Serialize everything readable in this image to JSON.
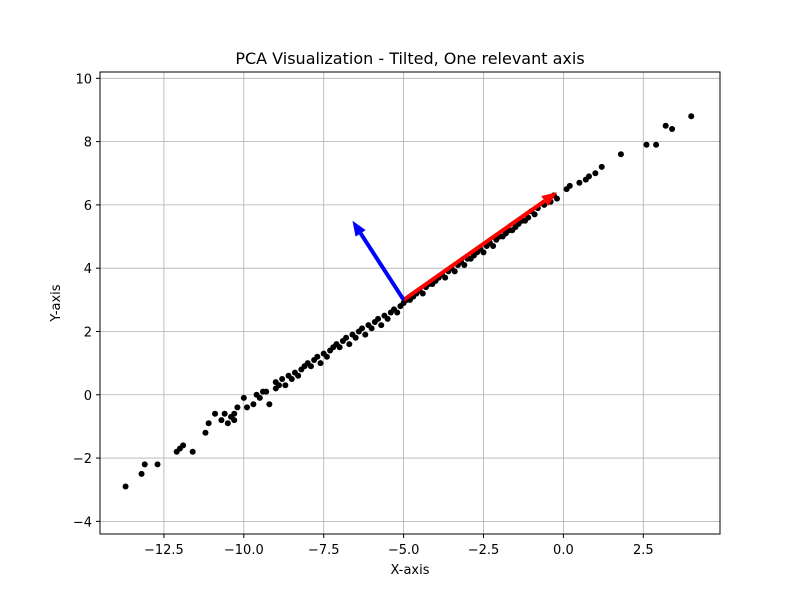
{
  "chart_data": {
    "type": "scatter",
    "title": "PCA Visualization - Tilted, One relevant axis",
    "xlabel": "X-axis",
    "ylabel": "Y-axis",
    "xlim": [
      -14.5,
      4.9
    ],
    "ylim": [
      -4.4,
      10.2
    ],
    "xticks": [
      -12.5,
      -10.0,
      -7.5,
      -5.0,
      -2.5,
      0.0,
      2.5
    ],
    "xtick_labels": [
      "−12.5",
      "−10.0",
      "−7.5",
      "−5.0",
      "−2.5",
      "0.0",
      "2.5"
    ],
    "yticks": [
      -4,
      -2,
      0,
      2,
      4,
      6,
      8,
      10
    ],
    "ytick_labels": [
      "−4",
      "−2",
      "0",
      "2",
      "4",
      "6",
      "8",
      "10"
    ],
    "grid": true,
    "point_color": "#000000",
    "points": [
      {
        "x": -13.7,
        "y": -2.9
      },
      {
        "x": -13.2,
        "y": -2.5
      },
      {
        "x": -13.1,
        "y": -2.2
      },
      {
        "x": -12.7,
        "y": -2.2
      },
      {
        "x": -12.1,
        "y": -1.8
      },
      {
        "x": -12.0,
        "y": -1.7
      },
      {
        "x": -11.9,
        "y": -1.6
      },
      {
        "x": -11.6,
        "y": -1.8
      },
      {
        "x": -11.2,
        "y": -1.2
      },
      {
        "x": -11.1,
        "y": -0.9
      },
      {
        "x": -10.9,
        "y": -0.6
      },
      {
        "x": -10.7,
        "y": -0.8
      },
      {
        "x": -10.6,
        "y": -0.6
      },
      {
        "x": -10.5,
        "y": -0.9
      },
      {
        "x": -10.4,
        "y": -0.7
      },
      {
        "x": -10.3,
        "y": -0.6
      },
      {
        "x": -10.3,
        "y": -0.8
      },
      {
        "x": -10.2,
        "y": -0.4
      },
      {
        "x": -10.0,
        "y": -0.1
      },
      {
        "x": -9.9,
        "y": -0.4
      },
      {
        "x": -9.7,
        "y": -0.3
      },
      {
        "x": -9.6,
        "y": 0.0
      },
      {
        "x": -9.5,
        "y": -0.1
      },
      {
        "x": -9.4,
        "y": 0.1
      },
      {
        "x": -9.3,
        "y": 0.1
      },
      {
        "x": -9.2,
        "y": -0.3
      },
      {
        "x": -9.0,
        "y": 0.2
      },
      {
        "x": -9.0,
        "y": 0.4
      },
      {
        "x": -8.9,
        "y": 0.3
      },
      {
        "x": -8.8,
        "y": 0.5
      },
      {
        "x": -8.7,
        "y": 0.3
      },
      {
        "x": -8.6,
        "y": 0.6
      },
      {
        "x": -8.5,
        "y": 0.5
      },
      {
        "x": -8.4,
        "y": 0.7
      },
      {
        "x": -8.3,
        "y": 0.6
      },
      {
        "x": -8.2,
        "y": 0.8
      },
      {
        "x": -8.1,
        "y": 0.9
      },
      {
        "x": -8.0,
        "y": 1.0
      },
      {
        "x": -7.9,
        "y": 0.9
      },
      {
        "x": -7.8,
        "y": 1.1
      },
      {
        "x": -7.7,
        "y": 1.2
      },
      {
        "x": -7.6,
        "y": 1.0
      },
      {
        "x": -7.5,
        "y": 1.3
      },
      {
        "x": -7.4,
        "y": 1.2
      },
      {
        "x": -7.3,
        "y": 1.4
      },
      {
        "x": -7.2,
        "y": 1.5
      },
      {
        "x": -7.1,
        "y": 1.6
      },
      {
        "x": -7.0,
        "y": 1.5
      },
      {
        "x": -6.9,
        "y": 1.7
      },
      {
        "x": -6.8,
        "y": 1.8
      },
      {
        "x": -6.7,
        "y": 1.6
      },
      {
        "x": -6.6,
        "y": 1.9
      },
      {
        "x": -6.5,
        "y": 1.8
      },
      {
        "x": -6.4,
        "y": 2.0
      },
      {
        "x": -6.3,
        "y": 2.1
      },
      {
        "x": -6.2,
        "y": 1.9
      },
      {
        "x": -6.1,
        "y": 2.2
      },
      {
        "x": -6.0,
        "y": 2.1
      },
      {
        "x": -5.9,
        "y": 2.3
      },
      {
        "x": -5.8,
        "y": 2.4
      },
      {
        "x": -5.7,
        "y": 2.2
      },
      {
        "x": -5.6,
        "y": 2.5
      },
      {
        "x": -5.5,
        "y": 2.4
      },
      {
        "x": -5.4,
        "y": 2.6
      },
      {
        "x": -5.3,
        "y": 2.7
      },
      {
        "x": -5.2,
        "y": 2.6
      },
      {
        "x": -5.1,
        "y": 2.8
      },
      {
        "x": -5.0,
        "y": 2.9
      },
      {
        "x": -4.9,
        "y": 3.0
      },
      {
        "x": -4.8,
        "y": 3.0
      },
      {
        "x": -4.7,
        "y": 3.1
      },
      {
        "x": -4.6,
        "y": 3.2
      },
      {
        "x": -4.5,
        "y": 3.3
      },
      {
        "x": -4.4,
        "y": 3.2
      },
      {
        "x": -4.3,
        "y": 3.4
      },
      {
        "x": -4.2,
        "y": 3.5
      },
      {
        "x": -4.1,
        "y": 3.5
      },
      {
        "x": -4.0,
        "y": 3.6
      },
      {
        "x": -3.9,
        "y": 3.7
      },
      {
        "x": -3.8,
        "y": 3.8
      },
      {
        "x": -3.7,
        "y": 3.7
      },
      {
        "x": -3.6,
        "y": 3.9
      },
      {
        "x": -3.5,
        "y": 4.0
      },
      {
        "x": -3.4,
        "y": 3.9
      },
      {
        "x": -3.3,
        "y": 4.1
      },
      {
        "x": -3.2,
        "y": 4.2
      },
      {
        "x": -3.1,
        "y": 4.1
      },
      {
        "x": -3.0,
        "y": 4.3
      },
      {
        "x": -2.9,
        "y": 4.3
      },
      {
        "x": -2.8,
        "y": 4.4
      },
      {
        "x": -2.7,
        "y": 4.5
      },
      {
        "x": -2.6,
        "y": 4.6
      },
      {
        "x": -2.5,
        "y": 4.5
      },
      {
        "x": -2.4,
        "y": 4.7
      },
      {
        "x": -2.3,
        "y": 4.8
      },
      {
        "x": -2.2,
        "y": 4.7
      },
      {
        "x": -2.1,
        "y": 4.9
      },
      {
        "x": -2.0,
        "y": 5.0
      },
      {
        "x": -1.9,
        "y": 5.0
      },
      {
        "x": -1.8,
        "y": 5.1
      },
      {
        "x": -1.7,
        "y": 5.2
      },
      {
        "x": -1.6,
        "y": 5.2
      },
      {
        "x": -1.5,
        "y": 5.3
      },
      {
        "x": -1.4,
        "y": 5.4
      },
      {
        "x": -1.3,
        "y": 5.5
      },
      {
        "x": -1.2,
        "y": 5.5
      },
      {
        "x": -1.1,
        "y": 5.6
      },
      {
        "x": -1.0,
        "y": 5.8
      },
      {
        "x": -0.9,
        "y": 5.7
      },
      {
        "x": -0.8,
        "y": 5.9
      },
      {
        "x": -0.6,
        "y": 6.0
      },
      {
        "x": -0.4,
        "y": 6.1
      },
      {
        "x": -0.3,
        "y": 6.3
      },
      {
        "x": -0.2,
        "y": 6.2
      },
      {
        "x": 0.1,
        "y": 6.5
      },
      {
        "x": 0.2,
        "y": 6.6
      },
      {
        "x": 0.5,
        "y": 6.7
      },
      {
        "x": 0.7,
        "y": 6.8
      },
      {
        "x": 0.8,
        "y": 6.9
      },
      {
        "x": 1.0,
        "y": 7.0
      },
      {
        "x": 1.2,
        "y": 7.2
      },
      {
        "x": 1.8,
        "y": 7.6
      },
      {
        "x": 2.6,
        "y": 7.9
      },
      {
        "x": 2.9,
        "y": 7.9
      },
      {
        "x": 3.2,
        "y": 8.5
      },
      {
        "x": 3.4,
        "y": 8.4
      },
      {
        "x": 4.0,
        "y": 8.8
      }
    ],
    "vectors": [
      {
        "from": [
          -5.0,
          3.0
        ],
        "to": [
          -0.2,
          6.4
        ],
        "color": "#ff0000"
      },
      {
        "from": [
          -5.0,
          3.0
        ],
        "to": [
          -6.6,
          5.5
        ],
        "color": "#0000ff"
      }
    ]
  }
}
